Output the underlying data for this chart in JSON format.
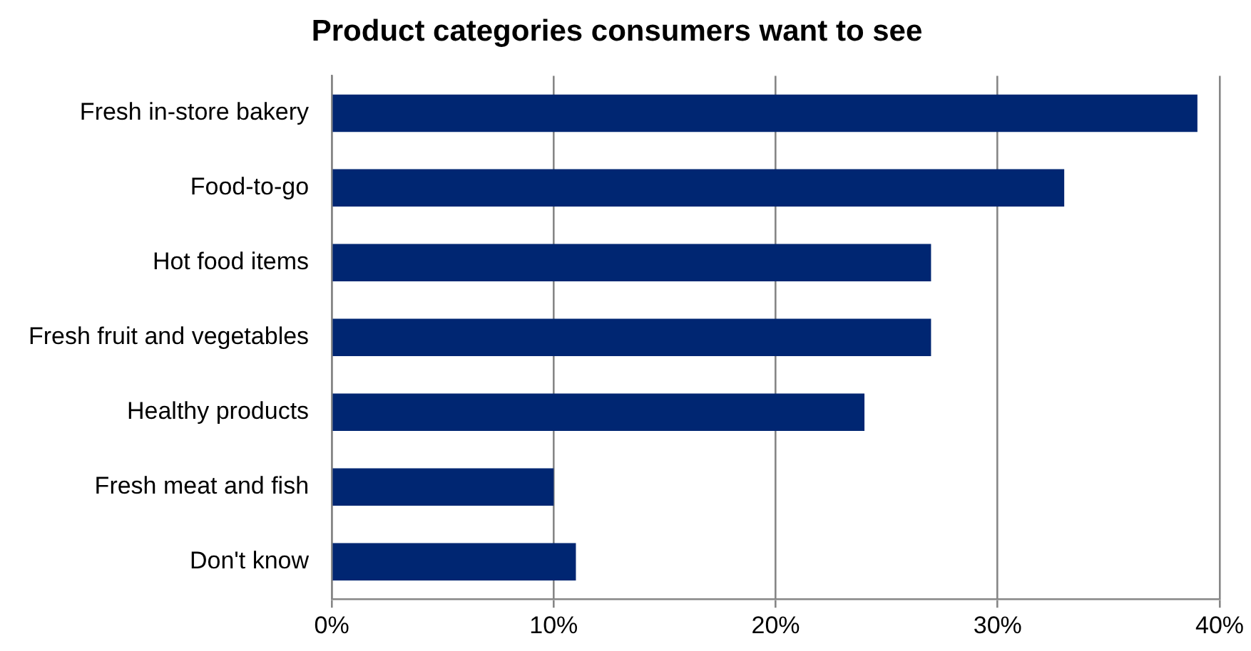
{
  "chart_data": {
    "type": "bar",
    "orientation": "horizontal",
    "title": "Product categories consumers want to see",
    "categories": [
      "Fresh in-store bakery",
      "Food-to-go",
      "Hot food items",
      "Fresh fruit and vegetables",
      "Healthy products",
      "Fresh meat and fish",
      "Don't know"
    ],
    "values": [
      39,
      33,
      27,
      27,
      24,
      10,
      11
    ],
    "color": "#002672",
    "xlim": [
      0,
      40
    ],
    "xticks": [
      {
        "value": 0,
        "label": "0%"
      },
      {
        "value": 10,
        "label": "10%"
      },
      {
        "value": 20,
        "label": "20%"
      },
      {
        "value": 30,
        "label": "30%"
      },
      {
        "value": 40,
        "label": "40%"
      }
    ],
    "grid": "x",
    "legend": false
  }
}
